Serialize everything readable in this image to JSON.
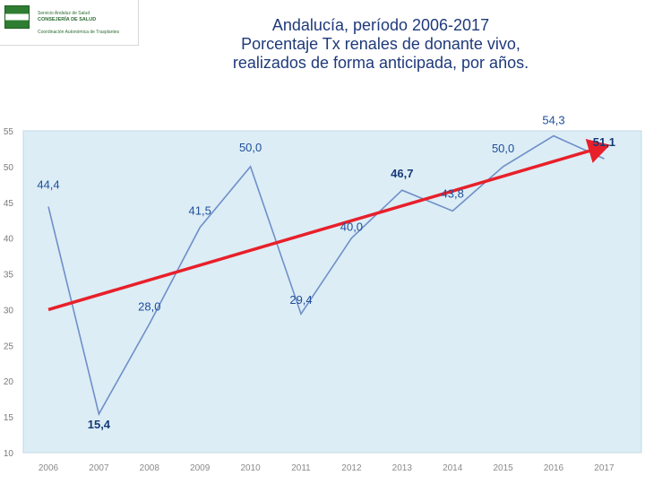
{
  "logo": {
    "line1": "Servicio Andaluz de Salud",
    "line2": "CONSEJERÍA DE SALUD",
    "line3": "Coordinación Autonómica de Trasplantes"
  },
  "title_lines": [
    "Andalucía, período 2006-2017",
    "Porcentaje Tx renales de donante vivo,",
    "realizados de forma anticipada, por años."
  ],
  "colors": {
    "plot_bg": "#dcedf6",
    "series_line": "#6f8fc8",
    "trend_line": "#e8202a",
    "label": "#1f4e9a"
  },
  "chart_data": {
    "type": "line",
    "title": "Andalucía, período 2006-2017 Porcentaje Tx renales de donante vivo, realizados de forma anticipada, por años.",
    "xlabel": "",
    "ylabel": "",
    "categories": [
      "2006",
      "2007",
      "2008",
      "2009",
      "2010",
      "2011",
      "2012",
      "2013",
      "2014",
      "2015",
      "2016",
      "2017"
    ],
    "series": [
      {
        "values": [
          44.4,
          15.4,
          28.0,
          41.5,
          50.0,
          29.4,
          40.0,
          46.7,
          43.8,
          50.0,
          54.3,
          51.1
        ],
        "labels": [
          "44,4",
          "15,4",
          "28,0",
          "41,5",
          "50,0",
          "29,4",
          "40,0",
          "46,7",
          "43,8",
          "50,0",
          "54,3",
          "51,1"
        ]
      }
    ],
    "trendline": {
      "start": 30.0,
      "end": 52.8,
      "arrow": true
    },
    "ylim": [
      10,
      55
    ],
    "yticks": [
      10,
      15,
      20,
      25,
      30,
      35,
      40,
      45,
      50,
      55
    ],
    "grid": false,
    "legend": "none"
  }
}
